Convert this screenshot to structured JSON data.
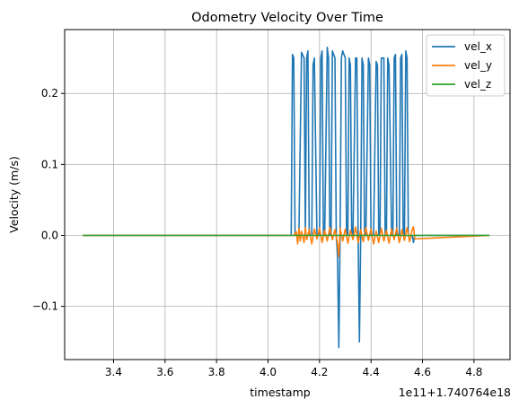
{
  "chart_data": {
    "type": "line",
    "title": "Odometry Velocity Over Time",
    "xlabel": "timestamp",
    "ylabel": "Velocity (m/s)",
    "x_offset_text": "1e11+1.740764e18",
    "xlim": [
      3.21,
      4.94
    ],
    "ylim": [
      -0.175,
      0.29
    ],
    "x_ticks": [
      3.4,
      3.6,
      3.8,
      4.0,
      4.2,
      4.4,
      4.6,
      4.8
    ],
    "x_tick_labels": [
      "3.4",
      "3.6",
      "3.8",
      "4.0",
      "4.2",
      "4.4",
      "4.6",
      "4.8"
    ],
    "y_ticks": [
      -0.1,
      0.0,
      0.1,
      0.2
    ],
    "y_tick_labels": [
      "−0.1",
      "0.0",
      "0.1",
      "0.2"
    ],
    "grid": true,
    "legend_position": "top-right",
    "series": [
      {
        "name": "vel_x",
        "color": "#1f77b4",
        "x": [
          3.28,
          4.09,
          4.095,
          4.1,
          4.105,
          4.11,
          4.115,
          4.12,
          4.13,
          4.14,
          4.145,
          4.15,
          4.155,
          4.16,
          4.17,
          4.175,
          4.18,
          4.19,
          4.2,
          4.205,
          4.21,
          4.215,
          4.22,
          4.23,
          4.235,
          4.24,
          4.245,
          4.25,
          4.26,
          4.265,
          4.27,
          4.275,
          4.28,
          4.285,
          4.29,
          4.3,
          4.305,
          4.31,
          4.315,
          4.32,
          4.325,
          4.33,
          4.34,
          4.345,
          4.35,
          4.355,
          4.36,
          4.365,
          4.37,
          4.375,
          4.38,
          4.39,
          4.395,
          4.4,
          4.405,
          4.41,
          4.42,
          4.425,
          4.43,
          4.435,
          4.44,
          4.45,
          4.455,
          4.46,
          4.465,
          4.47,
          4.48,
          4.485,
          4.49,
          4.495,
          4.5,
          4.51,
          4.515,
          4.52,
          4.525,
          4.53,
          4.535,
          4.54,
          4.545,
          4.55,
          4.555,
          4.56,
          4.565,
          4.57,
          4.86
        ],
        "values": [
          0.0,
          0.0,
          0.255,
          0.25,
          0.0,
          0.0,
          0.0,
          0.0,
          0.258,
          0.25,
          0.0,
          0.25,
          0.26,
          0.0,
          0.0,
          0.24,
          0.25,
          0.0,
          0.0,
          0.25,
          0.26,
          0.0,
          0.0,
          0.265,
          0.25,
          0.0,
          0.0,
          0.26,
          0.25,
          0.0,
          -0.03,
          -0.158,
          0.0,
          0.25,
          0.26,
          0.25,
          0.0,
          0.0,
          0.25,
          0.24,
          0.0,
          0.0,
          0.25,
          0.25,
          0.0,
          -0.15,
          0.0,
          0.25,
          0.24,
          0.0,
          0.0,
          0.25,
          0.24,
          0.0,
          0.0,
          0.0,
          0.245,
          0.24,
          0.0,
          0.0,
          0.25,
          0.25,
          0.0,
          0.0,
          0.25,
          0.24,
          0.0,
          0.0,
          0.25,
          0.255,
          0.0,
          0.0,
          0.25,
          0.255,
          0.0,
          0.0,
          0.26,
          0.25,
          0.0,
          0.0,
          0.0,
          0.0,
          -0.01,
          0.0,
          0.0
        ]
      },
      {
        "name": "vel_y",
        "color": "#ff7f0e",
        "x": [
          3.28,
          4.1,
          4.11,
          4.115,
          4.12,
          4.125,
          4.13,
          4.14,
          4.145,
          4.15,
          4.16,
          4.17,
          4.18,
          4.19,
          4.2,
          4.21,
          4.22,
          4.23,
          4.24,
          4.25,
          4.26,
          4.27,
          4.275,
          4.28,
          4.29,
          4.3,
          4.31,
          4.32,
          4.33,
          4.34,
          4.35,
          4.36,
          4.37,
          4.38,
          4.39,
          4.4,
          4.41,
          4.42,
          4.43,
          4.44,
          4.45,
          4.46,
          4.47,
          4.48,
          4.49,
          4.5,
          4.51,
          4.52,
          4.53,
          4.54,
          4.55,
          4.56,
          4.565,
          4.57,
          4.86
        ],
        "values": [
          0.0,
          0.0,
          0.005,
          -0.012,
          0.01,
          -0.008,
          0.006,
          -0.01,
          0.011,
          -0.006,
          0.008,
          -0.012,
          0.009,
          -0.005,
          0.01,
          -0.01,
          0.007,
          -0.008,
          0.011,
          -0.006,
          0.008,
          -0.012,
          -0.03,
          0.01,
          -0.008,
          0.009,
          -0.011,
          0.007,
          -0.006,
          0.012,
          -0.01,
          0.008,
          -0.009,
          0.011,
          -0.007,
          0.009,
          -0.012,
          0.006,
          -0.01,
          0.01,
          -0.008,
          0.007,
          -0.011,
          0.009,
          -0.006,
          0.01,
          -0.01,
          0.008,
          -0.007,
          0.011,
          -0.009,
          0.008,
          0.012,
          -0.005,
          0.0
        ]
      },
      {
        "name": "vel_z",
        "color": "#2ca02c",
        "x": [
          3.28,
          4.86
        ],
        "values": [
          0.0,
          0.0
        ]
      }
    ]
  }
}
